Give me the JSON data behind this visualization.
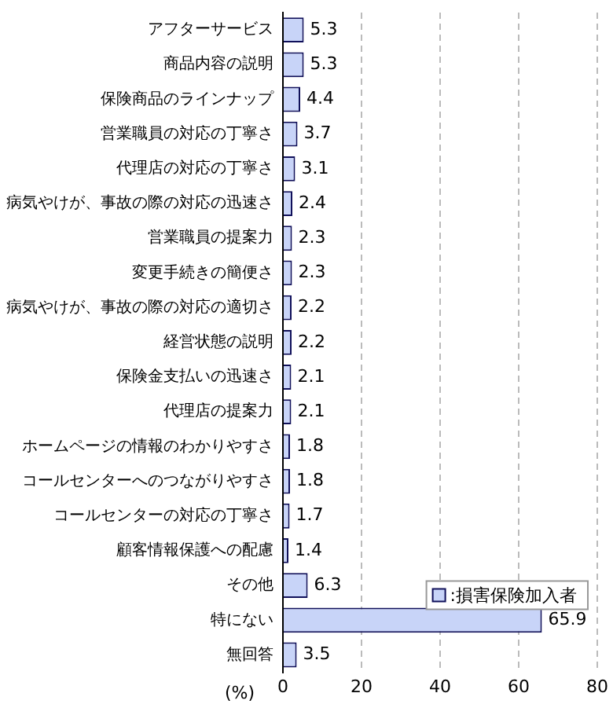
{
  "chart_data": {
    "type": "bar",
    "orientation": "horizontal",
    "xlabel": "(%)",
    "categories": [
      "アフターサービス",
      "商品内容の説明",
      "保険商品のラインナップ",
      "営業職員の対応の丁寧さ",
      "代理店の対応の丁寧さ",
      "病気やけが、事故の際の対応の迅速さ",
      "営業職員の提案力",
      "変更手続きの簡便さ",
      "病気やけが、事故の際の対応の適切さ",
      "経営状態の説明",
      "保険金支払いの迅速さ",
      "代理店の提案力",
      "ホームページの情報のわかりやすさ",
      "コールセンターへのつながりやすさ",
      "コールセンターの対応の丁寧さ",
      "顧客情報保護への配慮",
      "その他",
      "特にない",
      "無回答"
    ],
    "series": [
      {
        "name": ":損害保険加入者",
        "color": "#c8d4f8",
        "values": [
          5.3,
          5.3,
          4.4,
          3.7,
          3.1,
          2.4,
          2.3,
          2.3,
          2.2,
          2.2,
          2.1,
          2.1,
          1.8,
          1.8,
          1.7,
          1.4,
          6.3,
          65.9,
          3.5
        ]
      }
    ],
    "xlim": [
      0,
      80
    ],
    "xticks": [
      0,
      20,
      40,
      60,
      80
    ],
    "grid": "x",
    "legend": "bottom right",
    "data_labels": true
  }
}
